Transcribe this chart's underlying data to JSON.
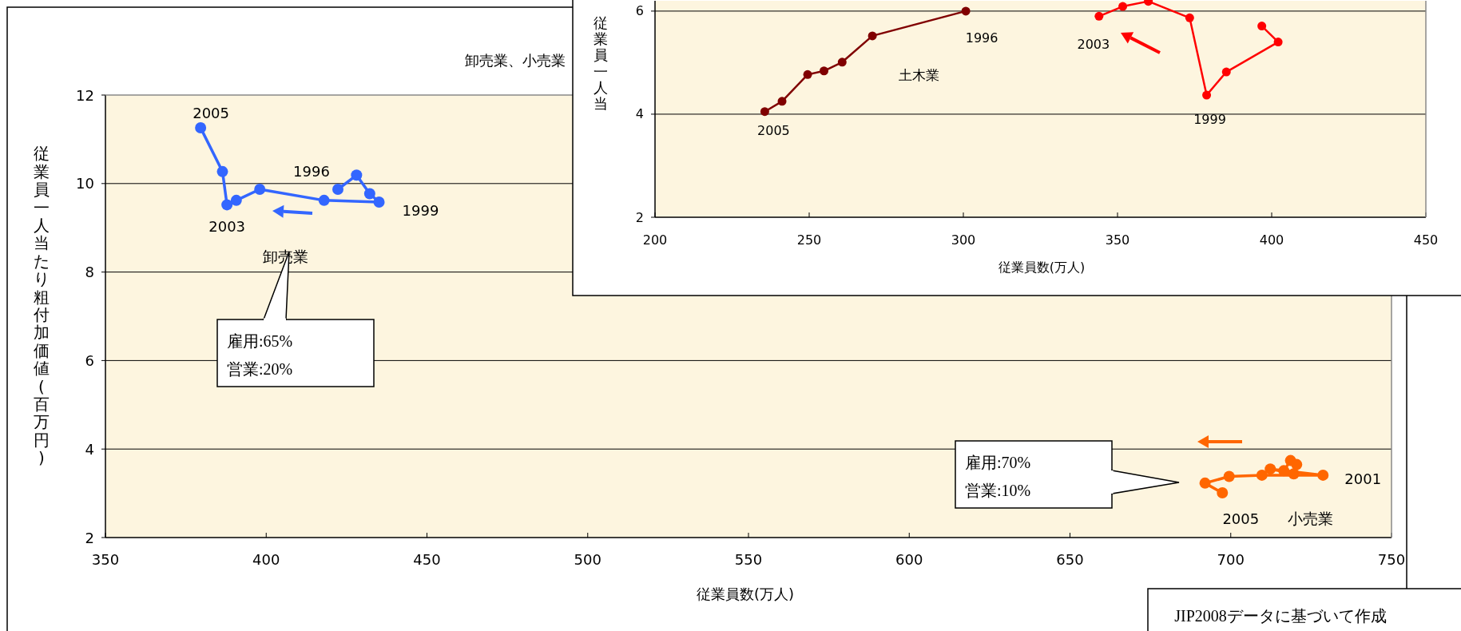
{
  "chart_data": [
    {
      "type": "line",
      "title": "卸売業、小売業",
      "xlabel": "従業員数(万人)",
      "ylabel": "従業員一人当たり粗付加価値(百万円)",
      "xlim": [
        350,
        750
      ],
      "xticks": [
        350,
        400,
        450,
        500,
        550,
        600,
        650,
        700,
        750
      ],
      "ylim": [
        2,
        12
      ],
      "yticks": [
        2,
        4,
        6,
        8,
        10,
        12
      ],
      "grid": "y",
      "marker": "circle",
      "line_style": "solid",
      "series": [
        {
          "name": "卸売業",
          "color": "#3366ff",
          "x": [
            422.3,
            428.1,
            432.2,
            435.1,
            418.0,
            398.0,
            390.7,
            387.8,
            386.4,
            379.6
          ],
          "values": [
            9.87,
            10.19,
            9.77,
            9.58,
            9.62,
            9.87,
            9.62,
            9.52,
            10.27,
            11.26
          ]
        },
        {
          "name": "小売業",
          "color": "#ff6600",
          "x": [
            716.5,
            718.6,
            720.5,
            719.6,
            712.3,
            728.7,
            709.7,
            699.5,
            692.0,
            697.4
          ],
          "values": [
            3.51,
            3.74,
            3.65,
            3.44,
            3.55,
            3.41,
            3.41,
            3.38,
            3.23,
            3.01
          ]
        }
      ],
      "annotations": [
        {
          "text": "2005",
          "x": 379.6,
          "y": 11.26
        },
        {
          "text": "1996",
          "x": 422.3,
          "y": 9.87
        },
        {
          "text": "1999",
          "x": 435.1,
          "y": 9.58
        },
        {
          "text": "2003",
          "x": 387.8,
          "y": 9.52
        },
        {
          "text": "2001",
          "x": 728.7,
          "y": 3.41
        },
        {
          "text": "2005",
          "x": 697.4,
          "y": 3.01
        },
        "雇用:65%\n営業:20%",
        "雇用:70%\n営業:10%",
        "JIP2008データに基づいて作成"
      ]
    },
    {
      "type": "line",
      "xlabel": "従業員数(万人)",
      "ylabel": "従業員一人当",
      "xlim": [
        200,
        450
      ],
      "xticks": [
        200,
        250,
        300,
        350,
        400,
        450
      ],
      "ylim": [
        2,
        6.2
      ],
      "yticks": [
        2,
        4,
        6
      ],
      "grid": "y",
      "marker": "circle",
      "line_style": "solid",
      "series": [
        {
          "name": "土木業",
          "color": "#800000",
          "x": [
            300.8,
            270.5,
            260.7,
            254.8,
            249.5,
            241.2,
            235.6
          ],
          "values": [
            6.0,
            5.52,
            5.01,
            4.84,
            4.77,
            4.25,
            4.05
          ]
        },
        {
          "color": "#ff0000",
          "x": [
            396.8,
            402.1,
            385.3,
            378.9,
            373.4,
            360.0,
            351.7,
            344.0
          ],
          "values": [
            5.71,
            5.4,
            4.82,
            4.37,
            5.87,
            6.19,
            6.09,
            5.9
          ]
        }
      ],
      "annotations": [
        {
          "text": "1996",
          "x": 300.8,
          "y": 6.0
        },
        {
          "text": "2005",
          "x": 235.6,
          "y": 4.05
        },
        {
          "text": "2003",
          "x": 344.0,
          "y": 5.9
        },
        {
          "text": "1999",
          "x": 378.9,
          "y": 4.37
        }
      ]
    }
  ]
}
